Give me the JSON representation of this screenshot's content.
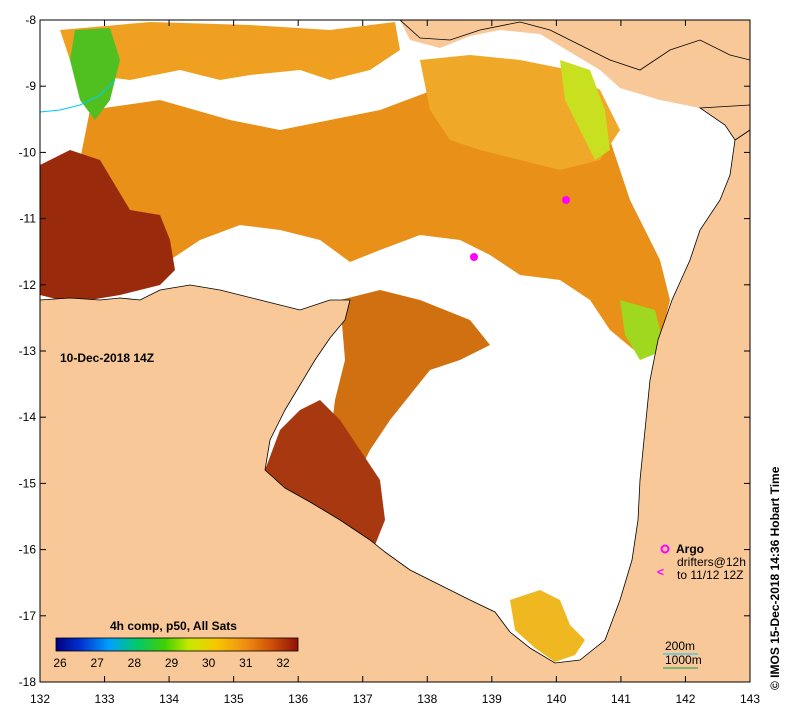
{
  "map": {
    "date_label": "10-Dec-2018 14Z",
    "credit": "© IMOS 15-Dec-2018 14:36 Hobart Time",
    "x_ticks": [
      "132",
      "133",
      "134",
      "135",
      "136",
      "137",
      "138",
      "139",
      "140",
      "141",
      "142",
      "143"
    ],
    "y_ticks": [
      "-8",
      "-9",
      "-10",
      "-11",
      "-12",
      "-13",
      "-14",
      "-15",
      "-16",
      "-17",
      "-18"
    ],
    "colorbar": {
      "title": "4h comp, p50, All Sats",
      "labels": [
        "26",
        "27",
        "28",
        "29",
        "30",
        "31",
        "32"
      ],
      "range": [
        26,
        32
      ]
    },
    "legend": {
      "argo": "Argo",
      "drifters_line1": "drifters@12h",
      "drifters_line2": "to 11/12 12Z",
      "marker_symbol": "<"
    },
    "depth_legend": {
      "contour1": "200m",
      "contour2": "1000m"
    },
    "colors": {
      "land": "#f8c898",
      "no_data": "#ffffff",
      "argo_marker": "#ff00ff",
      "contour_200": "#00c8ff",
      "contour_1000": "#00a060"
    }
  }
}
